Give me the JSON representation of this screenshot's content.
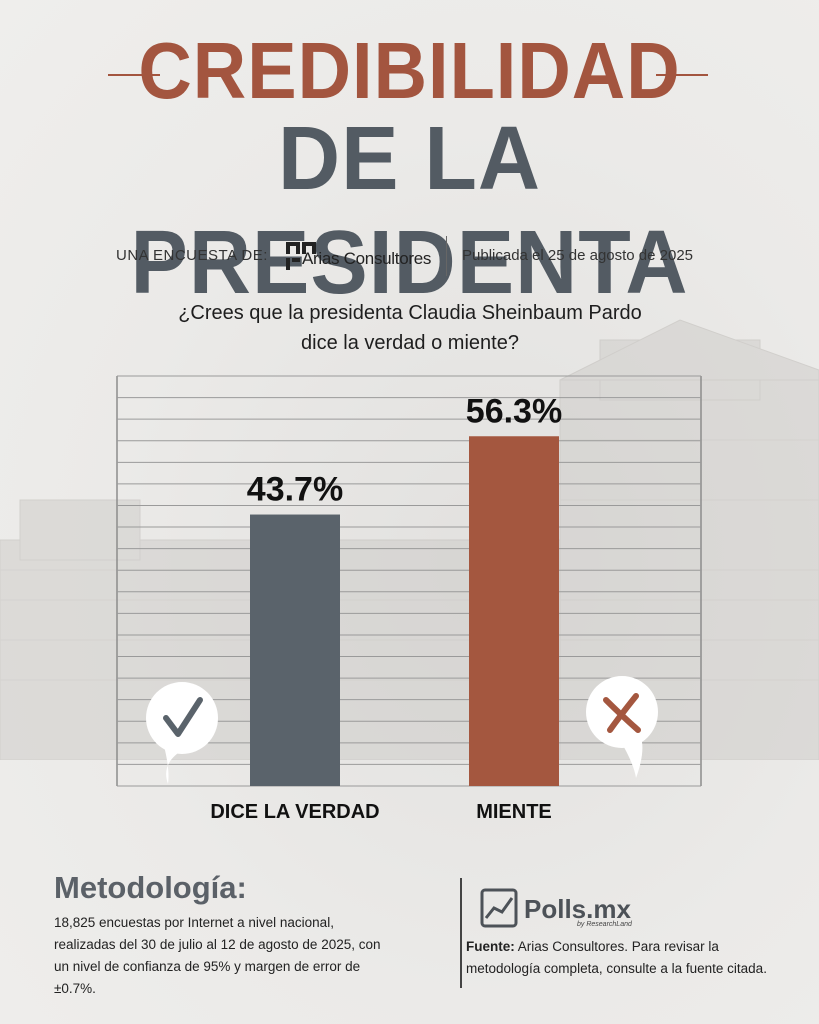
{
  "title": {
    "line1": "CREDIBILIDAD",
    "line2": "DE LA PRESIDENTA"
  },
  "source_line": {
    "label": "UNA ENCUESTA DE:",
    "pollster": "Arias Consultores",
    "published": "Publicada el 25 de agosto de 2025"
  },
  "question": {
    "line1": "¿Crees que la presidenta Claudia Sheinbaum Pardo",
    "line2": "dice la verdad o miente?"
  },
  "chart_data": {
    "type": "bar",
    "title": "¿Crees que la presidenta Claudia Sheinbaum Pardo dice la verdad o miente?",
    "categories": [
      "DICE LA VERDAD",
      "MIENTE"
    ],
    "values": [
      43.7,
      56.3
    ],
    "value_labels": [
      "43.7%",
      "56.3%"
    ],
    "unit": "%",
    "ylim": [
      0,
      66
    ],
    "grid": true,
    "colors": [
      "#5a636b",
      "#a4573f"
    ],
    "icons": [
      "check-icon",
      "cross-icon"
    ]
  },
  "methodology": {
    "title": "Metodología:",
    "text": "18,825 encuestas por Internet a nivel nacional, realizadas del 30 de julio al 12 de agosto de 2025, con un nivel de confianza de 95% y margen de error de ±0.7%."
  },
  "brand": {
    "name": "Polls.mx",
    "tagline": "by ResearchLand"
  },
  "fuente": {
    "label": "Fuente:",
    "text": " Arias Consultores. Para revisar la metodología completa, consulte a la fuente citada."
  },
  "colors": {
    "accent": "#a3553f",
    "slate": "#535b63",
    "background": "#ecebea"
  }
}
